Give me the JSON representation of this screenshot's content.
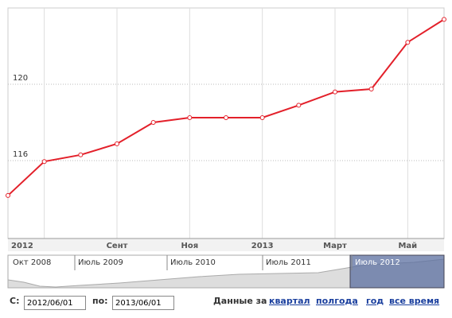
{
  "chart_data": {
    "type": "line",
    "categories": [
      "2012",
      null,
      null,
      "Сент",
      null,
      "Ноя",
      null,
      "2013",
      null,
      "Март",
      null,
      "Май",
      null
    ],
    "values": [
      114.17,
      115.95,
      116.3,
      116.88,
      118.0,
      118.25,
      118.25,
      118.25,
      118.9,
      119.6,
      119.75,
      122.2,
      123.4
    ],
    "color": "#e3202a",
    "ylim": [
      112,
      124
    ],
    "yticks": [
      116,
      120
    ],
    "grid": true
  },
  "navigator": {
    "labels": [
      "Окт 2008",
      "Июль 2009",
      "Июль 2010",
      "Июль 2011",
      "Июль 2012"
    ]
  },
  "controls": {
    "from_label": "С:",
    "from_value": "2012/06/01",
    "to_label": "по:",
    "to_value": "2013/06/01",
    "range_label": "Данные за",
    "links": [
      "квартал",
      "полгода",
      "год",
      "все время"
    ]
  }
}
